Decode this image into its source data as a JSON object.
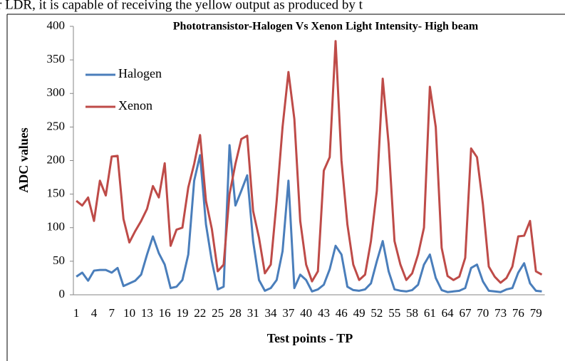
{
  "document_text": "r LDR, it is capable of receiving the yellow output as produced by t",
  "chart_data": {
    "type": "line",
    "title": "Phototransistor-Halogen Vs Xenon Light Intensity-  High beam",
    "x_label": "Test points - TP",
    "y_label": "ADC values",
    "categories": [
      "1",
      null,
      null,
      "4",
      null,
      null,
      "7",
      null,
      null,
      "10",
      null,
      null,
      "13",
      null,
      null,
      "16",
      null,
      null,
      "19",
      null,
      null,
      "22",
      null,
      null,
      "25",
      null,
      null,
      "28",
      null,
      null,
      "31",
      null,
      null,
      "34",
      null,
      null,
      "37",
      null,
      null,
      "40",
      null,
      null,
      "43",
      null,
      null,
      "46",
      null,
      null,
      "49",
      null,
      null,
      "52",
      null,
      null,
      "55",
      null,
      null,
      "58",
      null,
      null,
      "61",
      null,
      null,
      "64",
      null,
      null,
      "67",
      null,
      null,
      "70",
      null,
      null,
      "73",
      null,
      null,
      "76",
      null,
      null,
      "79",
      null
    ],
    "series": [
      {
        "name": "Halogen",
        "color": "#4a7ebb",
        "values": [
          27,
          33,
          21,
          36,
          37,
          37,
          33,
          40,
          13,
          17,
          21,
          30,
          60,
          87,
          62,
          45,
          10,
          12,
          22,
          60,
          170,
          208,
          105,
          50,
          8,
          12,
          223,
          133,
          155,
          178,
          80,
          22,
          6,
          10,
          22,
          65,
          170,
          10,
          30,
          22,
          5,
          8,
          15,
          38,
          73,
          60,
          12,
          7,
          6,
          8,
          17,
          50,
          80,
          35,
          8,
          6,
          5,
          7,
          15,
          45,
          60,
          25,
          7,
          4,
          5,
          6,
          10,
          40,
          45,
          20,
          6,
          5,
          4,
          8,
          10,
          33,
          47,
          17,
          6,
          5
        ]
      },
      {
        "name": "Xenon",
        "color": "#be4b48",
        "values": [
          140,
          133,
          145,
          110,
          170,
          148,
          206,
          207,
          113,
          78,
          95,
          110,
          128,
          162,
          145,
          196,
          73,
          97,
          100,
          160,
          195,
          238,
          140,
          98,
          35,
          45,
          150,
          195,
          232,
          237,
          125,
          85,
          32,
          45,
          140,
          250,
          332,
          262,
          110,
          45,
          20,
          35,
          185,
          205,
          378,
          200,
          105,
          45,
          22,
          30,
          80,
          155,
          322,
          225,
          80,
          45,
          22,
          32,
          60,
          100,
          310,
          250,
          70,
          28,
          22,
          27,
          55,
          218,
          205,
          135,
          42,
          27,
          18,
          25,
          42,
          87,
          88,
          110,
          35,
          30
        ]
      }
    ],
    "ylim": [
      0,
      400
    ],
    "yticks": [
      0,
      50,
      100,
      150,
      200,
      250,
      300,
      350,
      400
    ],
    "grid": false,
    "legend": "upper left"
  }
}
